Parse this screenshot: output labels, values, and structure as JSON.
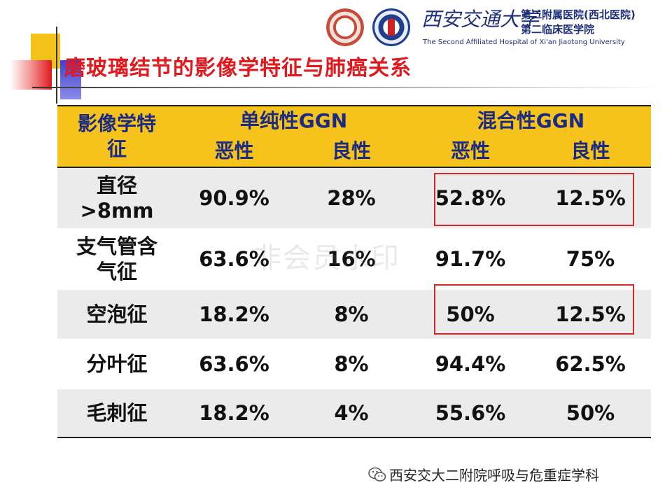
{
  "title": "磨玻璃结节的影像学特征与肺癌关系",
  "header": {
    "university": "西安交通大学",
    "hospital_line1": "第二附属医院(西北医院)",
    "hospital_line2": "第二临床医学院",
    "hospital_en": "The Second Affiliated Hospital of Xi'an Jiaotong University"
  },
  "table": {
    "header_feature_line1": "影像学特",
    "header_feature_line2": "征",
    "group_pure": "单纯性GGN",
    "group_mixed": "混合性GGN",
    "malignant": "恶性",
    "benign": "良性",
    "rows": [
      {
        "feature_line1": "直径",
        "feature_line2": ">8mm",
        "pure_malignant": "90.9%",
        "pure_benign": "28%",
        "mixed_malignant": "52.8%",
        "mixed_benign": "12.5%"
      },
      {
        "feature_line1": "支气管含",
        "feature_line2": "气征",
        "pure_malignant": "63.6%",
        "pure_benign": "16%",
        "mixed_malignant": "91.7%",
        "mixed_benign": "75%"
      },
      {
        "feature_line1": "空泡征",
        "feature_line2": "",
        "pure_malignant": "18.2%",
        "pure_benign": "8%",
        "mixed_malignant": "50%",
        "mixed_benign": "12.5%"
      },
      {
        "feature_line1": "分叶征",
        "feature_line2": "",
        "pure_malignant": "63.6%",
        "pure_benign": "8%",
        "mixed_malignant": "94.4%",
        "mixed_benign": "62.5%"
      },
      {
        "feature_line1": "毛刺征",
        "feature_line2": "",
        "pure_malignant": "18.2%",
        "pure_benign": "4%",
        "mixed_malignant": "55.6%",
        "mixed_benign": "50%"
      }
    ]
  },
  "watermark": "非会员水印",
  "footer": {
    "source": "西安交大二附院呼吸与危重症学科",
    "icon": "wechat-icon"
  },
  "colors": {
    "title": "#e0191e",
    "header_bg": "#f6c21c",
    "header_text": "#1b2b83",
    "highlight": "#d52a2a"
  }
}
